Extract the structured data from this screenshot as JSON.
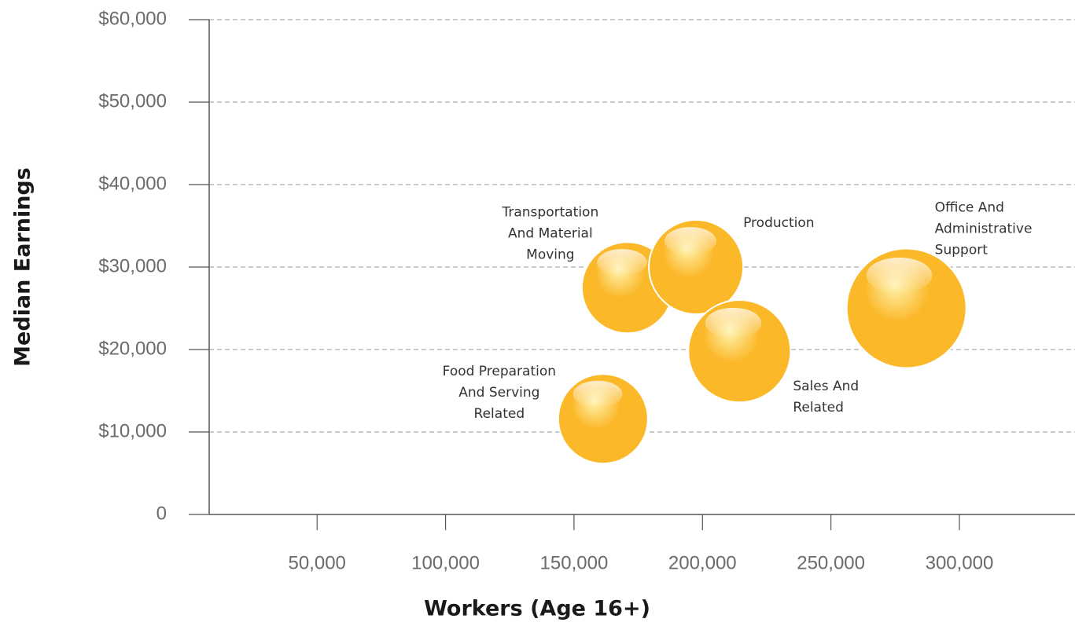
{
  "chart_data": {
    "type": "bubble",
    "x_label": "Workers (Age 16+)",
    "y_label": "Median Earnings",
    "color": "#fbb829",
    "grid": true,
    "xlim": [
      8000,
      345000
    ],
    "xticks": [
      {
        "value": 50000,
        "label": "50,000"
      },
      {
        "value": 100000,
        "label": "100,000"
      },
      {
        "value": 150000,
        "label": "150,000"
      },
      {
        "value": 200000,
        "label": "200,000"
      },
      {
        "value": 250000,
        "label": "250,000"
      },
      {
        "value": 300000,
        "label": "300,000"
      }
    ],
    "ylim": [
      0,
      60000
    ],
    "yticks": [
      0,
      {
        "value": 10000,
        "label": "$10,000"
      },
      {
        "value": 20000,
        "label": "$20,000"
      },
      {
        "value": 30000,
        "label": "$30,000"
      },
      {
        "value": 40000,
        "label": "$40,000"
      },
      {
        "value": 50000,
        "label": "$50,000"
      },
      {
        "value": 60000,
        "label": "$60,000"
      }
    ],
    "labels": [
      [
        "Food Preparation",
        "And Serving",
        "Related"
      ],
      [
        "Transportation",
        "And Material",
        "Moving"
      ],
      [
        "Production"
      ],
      [
        "Sales And",
        "Related"
      ],
      [
        "Office And",
        "Administrative",
        "Support"
      ]
    ],
    "x": [
      161300,
      170800,
      197500,
      214400,
      279400
    ],
    "values": [
      11600,
      27500,
      30000,
      19800,
      25000
    ],
    "sizes": [
      3250,
      3360,
      3600,
      4230,
      5780
    ]
  }
}
